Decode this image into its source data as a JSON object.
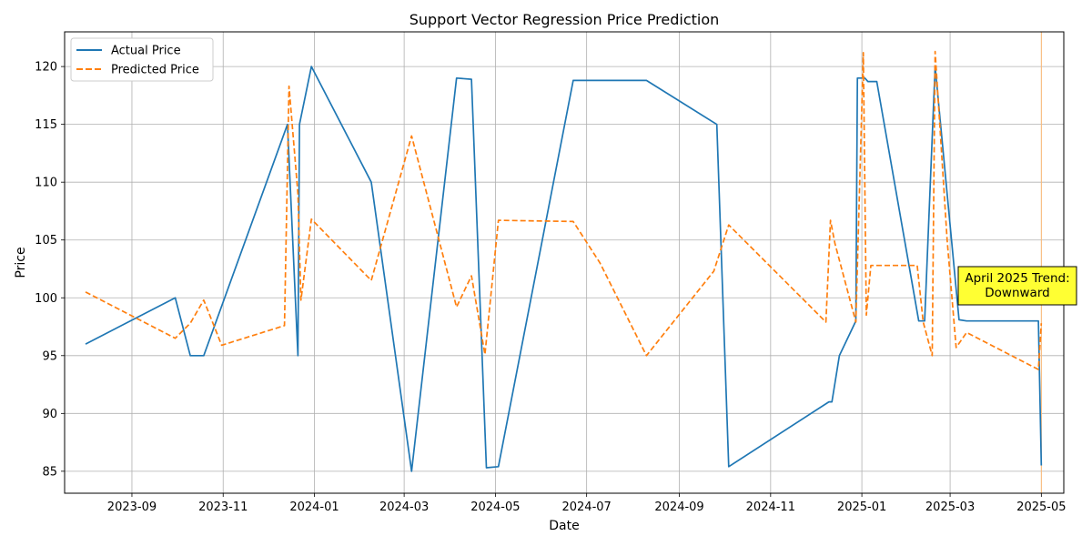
{
  "chart_data": {
    "type": "line",
    "title": "Support Vector Regression Price Prediction",
    "xlabel": "Date",
    "ylabel": "Price",
    "ylim": [
      83.1,
      123.0
    ],
    "xlim": [
      "2023-07-18",
      "2025-05-16"
    ],
    "x_ticks": [
      "2023-09-01",
      "2023-11-01",
      "2024-01-01",
      "2024-03-01",
      "2024-05-01",
      "2024-07-01",
      "2024-09-01",
      "2024-11-01",
      "2025-01-01",
      "2025-03-01",
      "2025-05-01"
    ],
    "x_tick_labels": [
      "2023-09",
      "2023-11",
      "2024-01",
      "2024-03",
      "2024-05",
      "2024-07",
      "2024-09",
      "2024-11",
      "2025-01",
      "2025-03",
      "2025-05"
    ],
    "y_ticks": [
      85,
      90,
      95,
      100,
      105,
      110,
      115,
      120
    ],
    "y_tick_labels": [
      "85",
      "90",
      "95",
      "100",
      "105",
      "110",
      "115",
      "120"
    ],
    "grid": true,
    "legend_position": "top-left",
    "series": [
      {
        "name": "Actual Price",
        "color": "#1f77b4",
        "style": "solid",
        "points": [
          [
            "2023-08-01",
            96.0
          ],
          [
            "2023-09-30",
            100.0
          ],
          [
            "2023-10-10",
            95.0
          ],
          [
            "2023-10-19",
            95.0
          ],
          [
            "2023-12-14",
            115.0
          ],
          [
            "2023-12-21",
            95.0
          ],
          [
            "2023-12-22",
            115.0
          ],
          [
            "2023-12-30",
            120.0
          ],
          [
            "2024-02-08",
            110.0
          ],
          [
            "2024-03-06",
            85.0
          ],
          [
            "2024-04-05",
            119.0
          ],
          [
            "2024-04-15",
            118.9
          ],
          [
            "2024-04-25",
            85.3
          ],
          [
            "2024-05-03",
            85.4
          ],
          [
            "2024-06-22",
            118.8
          ],
          [
            "2024-08-10",
            118.8
          ],
          [
            "2024-09-26",
            115.0
          ],
          [
            "2024-10-04",
            85.4
          ],
          [
            "2024-12-10",
            91.0
          ],
          [
            "2024-12-12",
            91.0
          ],
          [
            "2024-12-17",
            95.0
          ],
          [
            "2024-12-28",
            98.0
          ],
          [
            "2024-12-29",
            119.0
          ],
          [
            "2025-01-03",
            119.0
          ],
          [
            "2025-01-05",
            118.7
          ],
          [
            "2025-01-11",
            118.7
          ],
          [
            "2025-02-08",
            98.0
          ],
          [
            "2025-02-12",
            98.0
          ],
          [
            "2025-02-19",
            120.0
          ],
          [
            "2025-03-07",
            98.1
          ],
          [
            "2025-03-12",
            98.0
          ],
          [
            "2025-04-29",
            98.0
          ],
          [
            "2025-05-01",
            85.5
          ]
        ]
      },
      {
        "name": "Predicted Price",
        "color": "#ff7f0e",
        "style": "dashed",
        "points": [
          [
            "2023-08-01",
            100.5
          ],
          [
            "2023-09-30",
            96.5
          ],
          [
            "2023-10-10",
            97.8
          ],
          [
            "2023-10-19",
            99.8
          ],
          [
            "2023-10-31",
            95.9
          ],
          [
            "2023-12-12",
            97.6
          ],
          [
            "2023-12-15",
            118.3
          ],
          [
            "2023-12-21",
            109.0
          ],
          [
            "2023-12-23",
            99.8
          ],
          [
            "2023-12-30",
            106.8
          ],
          [
            "2024-02-08",
            101.5
          ],
          [
            "2024-03-06",
            114.0
          ],
          [
            "2024-04-05",
            99.2
          ],
          [
            "2024-04-15",
            101.9
          ],
          [
            "2024-04-24",
            95.1
          ],
          [
            "2024-05-03",
            106.7
          ],
          [
            "2024-06-22",
            106.6
          ],
          [
            "2024-07-10",
            103.0
          ],
          [
            "2024-08-10",
            95.0
          ],
          [
            "2024-09-24",
            102.3
          ],
          [
            "2024-10-04",
            106.3
          ],
          [
            "2024-12-08",
            97.9
          ],
          [
            "2024-12-11",
            106.7
          ],
          [
            "2024-12-14",
            104.7
          ],
          [
            "2024-12-28",
            97.9
          ],
          [
            "2025-01-02",
            121.2
          ],
          [
            "2025-01-04",
            98.5
          ],
          [
            "2025-01-07",
            102.8
          ],
          [
            "2025-02-07",
            102.8
          ],
          [
            "2025-02-11",
            97.9
          ],
          [
            "2025-02-17",
            95.0
          ],
          [
            "2025-02-19",
            121.3
          ],
          [
            "2025-02-27",
            105.0
          ],
          [
            "2025-03-05",
            95.7
          ],
          [
            "2025-03-12",
            97.0
          ],
          [
            "2025-04-29",
            93.8
          ],
          [
            "2025-05-01",
            97.8
          ]
        ]
      }
    ],
    "vertical_marker": {
      "date": "2025-05-01",
      "color": "#ffbb78"
    },
    "annotation": {
      "lines": [
        "April 2025 Trend:",
        "Downward"
      ],
      "background": "#ffff33",
      "border": "#000000"
    }
  }
}
